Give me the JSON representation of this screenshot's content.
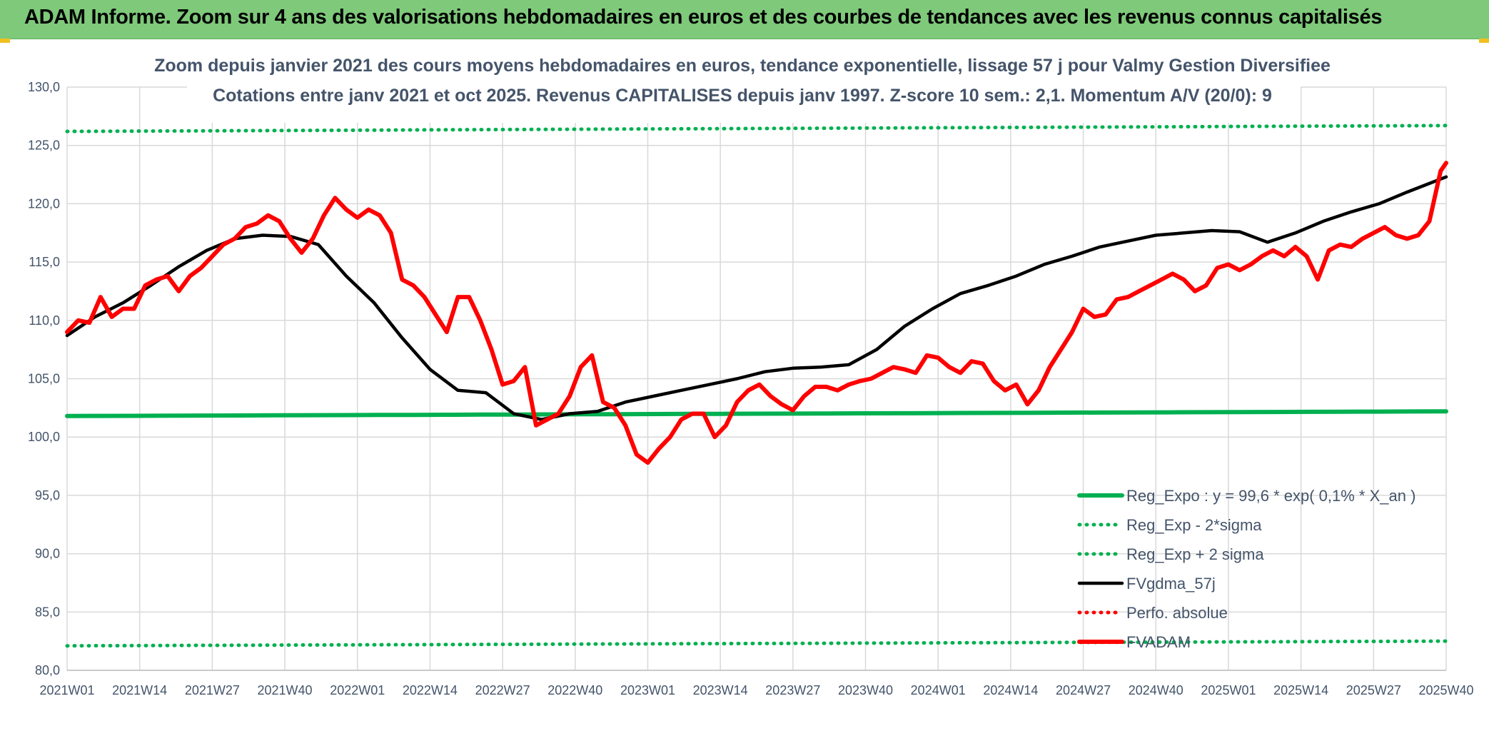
{
  "banner": {
    "title": "ADAM Informe. Zoom sur 4 ans des valorisations hebdomadaires en euros et des courbes de tendances avec les revenus connus capitalisés"
  },
  "colors": {
    "banner_bg": "#7ec97a",
    "green": "#00b050",
    "red": "#ff0000",
    "black": "#000000",
    "grid": "#d9d9d9",
    "text": "#44546a"
  },
  "chart_data": {
    "type": "line",
    "title": "Zoom depuis janvier 2021 des cours moyens hebdomadaires en euros, tendance exponentielle, lissage 57 j pour Valmy Gestion Diversifiee",
    "subtitle": "Cotations entre janv 2021 et oct 2025. Revenus CAPITALISES depuis janv 1997. Z-score 10 sem.: 2,1. Momentum A/V (20/0): 9",
    "xlabel": "",
    "ylabel": "",
    "ylim": [
      80,
      130
    ],
    "y_ticks": [
      "80,0",
      "85,0",
      "90,0",
      "95,0",
      "100,0",
      "105,0",
      "110,0",
      "115,0",
      "120,0",
      "125,0",
      "130,0"
    ],
    "x_ticks": [
      "2021W01",
      "2021W14",
      "2021W27",
      "2021W40",
      "2022W01",
      "2022W14",
      "2022W27",
      "2022W40",
      "2023W01",
      "2023W14",
      "2023W27",
      "2023W40",
      "2024W01",
      "2024W14",
      "2024W27",
      "2024W40",
      "2025W01",
      "2025W14",
      "2025W27",
      "2025W40"
    ],
    "grid": true,
    "legend_position": "bottom-right",
    "series": [
      {
        "name": "Reg_Expo : y = 99,6 * exp( 0,1% *  X_an )",
        "color": "#00b050",
        "style": "solid",
        "x": [
          0,
          247
        ],
        "values": [
          101.8,
          102.2
        ]
      },
      {
        "name": "Reg_Exp - 2*sigma",
        "color": "#00b050",
        "style": "dotted",
        "x": [
          0,
          247
        ],
        "values": [
          82.1,
          82.5
        ]
      },
      {
        "name": "Reg_Exp + 2 sigma",
        "color": "#00b050",
        "style": "dotted",
        "x": [
          0,
          247
        ],
        "values": [
          126.2,
          126.7
        ]
      },
      {
        "name": "FVgdma_57j",
        "color": "#000000",
        "style": "solid",
        "x": [
          0,
          5,
          10,
          15,
          20,
          25,
          30,
          35,
          40,
          45,
          50,
          55,
          60,
          65,
          70,
          75,
          80,
          85,
          90,
          95,
          100,
          105,
          110,
          115,
          120,
          125,
          130,
          135,
          140,
          145,
          150,
          155,
          160,
          165,
          170,
          175,
          180,
          185,
          190,
          195,
          200,
          205,
          210,
          215,
          220,
          225,
          230,
          235,
          240,
          247
        ],
        "values": [
          108.7,
          110.3,
          111.5,
          113.0,
          114.6,
          116.0,
          117.0,
          117.3,
          117.2,
          116.5,
          113.8,
          111.5,
          108.5,
          105.8,
          104.0,
          103.8,
          102.0,
          101.5,
          102.0,
          102.2,
          103.0,
          103.5,
          104.0,
          104.5,
          105.0,
          105.6,
          105.9,
          106.0,
          106.2,
          107.5,
          109.5,
          111.0,
          112.3,
          113.0,
          113.8,
          114.8,
          115.5,
          116.3,
          116.8,
          117.3,
          117.5,
          117.7,
          117.6,
          116.7,
          117.5,
          118.5,
          119.3,
          120.0,
          121.0,
          122.3
        ]
      },
      {
        "name": "Perfo. absolue",
        "color": "#ff0000",
        "style": "dotted",
        "x": [],
        "values": []
      },
      {
        "name": "FVADAM",
        "color": "#ff0000",
        "style": "solid",
        "x": [
          0,
          2,
          4,
          6,
          8,
          10,
          12,
          14,
          16,
          18,
          20,
          22,
          24,
          26,
          28,
          30,
          32,
          34,
          36,
          38,
          40,
          42,
          44,
          46,
          48,
          50,
          52,
          54,
          56,
          58,
          60,
          62,
          64,
          66,
          68,
          70,
          72,
          74,
          76,
          78,
          80,
          82,
          84,
          86,
          88,
          90,
          92,
          94,
          96,
          98,
          100,
          102,
          104,
          106,
          108,
          110,
          112,
          114,
          116,
          118,
          120,
          122,
          124,
          126,
          128,
          130,
          132,
          134,
          136,
          138,
          140,
          142,
          144,
          146,
          148,
          150,
          152,
          154,
          156,
          158,
          160,
          162,
          164,
          166,
          168,
          170,
          172,
          174,
          176,
          178,
          180,
          182,
          184,
          186,
          188,
          190,
          192,
          194,
          196,
          198,
          200,
          202,
          204,
          206,
          208,
          210,
          212,
          214,
          216,
          218,
          220,
          222,
          224,
          226,
          228,
          230,
          232,
          234,
          236,
          238,
          240,
          242,
          244,
          246,
          247
        ],
        "values": [
          109.0,
          110.0,
          109.8,
          112.0,
          110.3,
          111.0,
          111.0,
          113.0,
          113.5,
          113.8,
          112.5,
          113.8,
          114.5,
          115.5,
          116.5,
          117.0,
          118.0,
          118.3,
          119.0,
          118.5,
          117.0,
          115.8,
          117.0,
          119.0,
          120.5,
          119.5,
          118.8,
          119.5,
          119.0,
          117.5,
          113.5,
          113.0,
          112.0,
          110.5,
          109.0,
          112.0,
          112.0,
          110.0,
          107.5,
          104.5,
          104.8,
          106.0,
          101.0,
          101.5,
          102.0,
          103.5,
          106.0,
          107.0,
          103.0,
          102.5,
          101.0,
          98.5,
          97.8,
          99.0,
          100.0,
          101.5,
          102.0,
          102.0,
          100.0,
          101.0,
          103.0,
          104.0,
          104.5,
          103.5,
          102.8,
          102.3,
          103.5,
          104.3,
          104.3,
          104.0,
          104.5,
          104.8,
          105.0,
          105.5,
          106.0,
          105.8,
          105.5,
          107.0,
          106.8,
          106.0,
          105.5,
          106.5,
          106.3,
          104.8,
          104.0,
          104.5,
          102.8,
          104.0,
          106.0,
          107.5,
          109.0,
          111.0,
          110.3,
          110.5,
          111.8,
          112.0,
          112.5,
          113.0,
          113.5,
          114.0,
          113.5,
          112.5,
          113.0,
          114.5,
          114.8,
          114.3,
          114.8,
          115.5,
          116.0,
          115.5,
          116.3,
          115.5,
          113.5,
          116.0,
          116.5,
          116.3,
          117.0,
          117.5,
          118.0,
          117.3,
          117.0,
          117.3,
          118.5,
          122.8,
          123.5
        ]
      }
    ]
  }
}
